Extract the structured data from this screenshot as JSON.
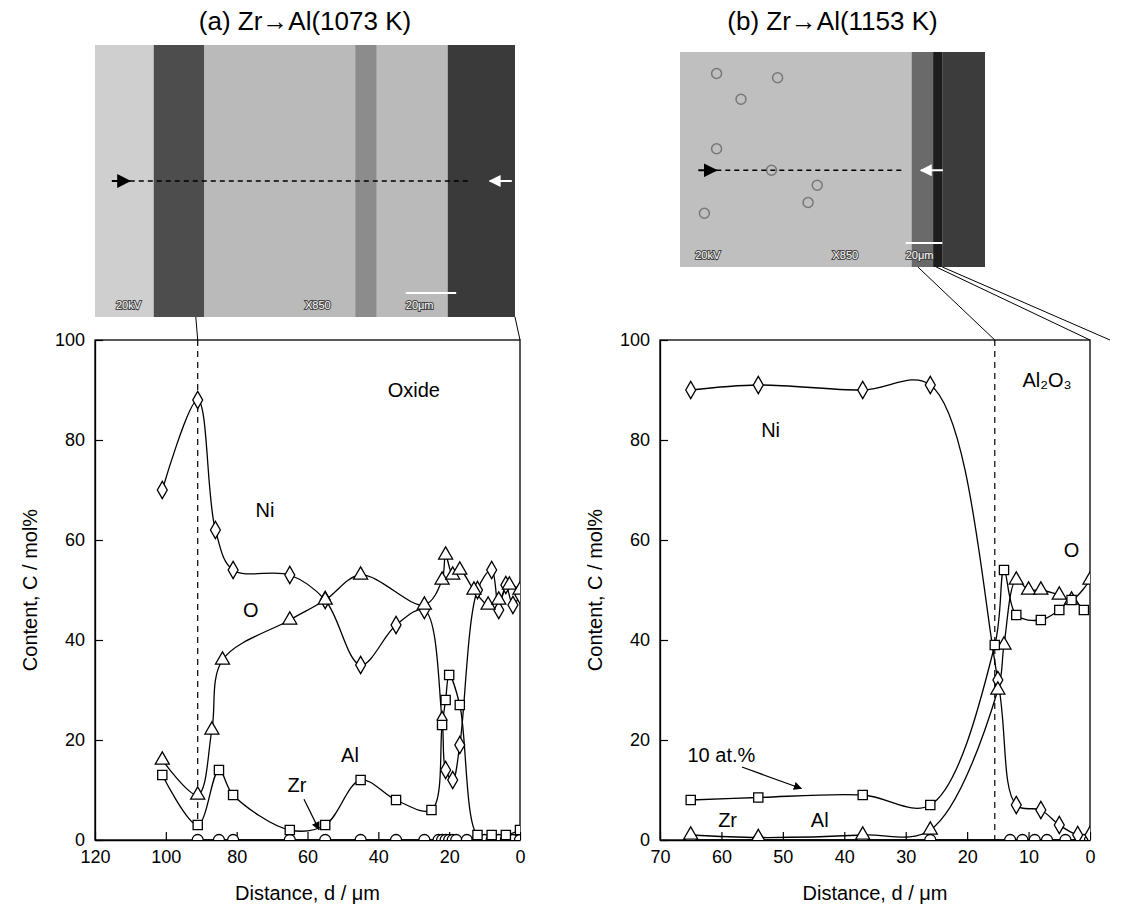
{
  "chart_data": [
    {
      "type": "line",
      "title": "(a) Zr→Al(1073 K)",
      "x_label": "Distance, d / μm",
      "y_label": "Content, C / mol%",
      "xlim": [
        120,
        0
      ],
      "xticks": [
        120,
        100,
        80,
        60,
        40,
        20,
        0
      ],
      "ylim": [
        0,
        100
      ],
      "yticks": [
        0,
        20,
        40,
        60,
        80,
        100
      ],
      "color": "#000000",
      "micrograph_labels": [
        "20kV",
        "X850",
        "20μm"
      ],
      "reference_lines": [
        {
          "x": 91,
          "line_style": "dashed"
        }
      ],
      "annotations": [
        {
          "text": "Oxide",
          "x": 30,
          "y": 90
        }
      ],
      "series": [
        {
          "name": "Zr",
          "marker": "circle",
          "line_style": "solid",
          "label_position": [
            63,
            11
          ],
          "label_arrow_to": [
            56,
            1
          ],
          "x": [
            91,
            85,
            81,
            65,
            55,
            45,
            35,
            27,
            23,
            22,
            21,
            20,
            19,
            18,
            15,
            12,
            10,
            8,
            6,
            4,
            2,
            0
          ],
          "values": [
            0,
            0,
            0,
            0,
            0,
            0,
            0,
            0,
            0,
            0,
            0,
            0,
            0,
            0,
            0,
            0,
            0,
            0,
            0,
            0,
            0,
            0
          ]
        },
        {
          "name": "Ni",
          "marker": "diamond",
          "line_style": "solid",
          "label_position": [
            72,
            66
          ],
          "x": [
            101,
            91,
            86,
            81,
            65,
            55,
            45,
            35,
            27,
            22,
            21,
            19,
            17,
            12,
            8,
            6,
            4,
            2,
            0
          ],
          "values": [
            70,
            88,
            62,
            54,
            53,
            48,
            35,
            43,
            46,
            24,
            14,
            12,
            19,
            50,
            54,
            46,
            51,
            47,
            49
          ]
        },
        {
          "name": "O",
          "marker": "triangle",
          "line_style": "solid",
          "label_position": [
            76,
            46
          ],
          "x": [
            101,
            91,
            87,
            84,
            65,
            55,
            45,
            27,
            22,
            21,
            19,
            17,
            13,
            9,
            6,
            3,
            0
          ],
          "values": [
            16,
            9,
            22,
            36,
            44,
            48,
            53,
            47,
            52,
            57,
            53,
            54,
            50,
            47,
            48,
            51,
            50
          ]
        },
        {
          "name": "Al",
          "marker": "square",
          "line_style": "solid",
          "label_position": [
            48,
            17
          ],
          "x": [
            101,
            91,
            85,
            81,
            65,
            55,
            45,
            35,
            25,
            22,
            21,
            20,
            17,
            12,
            8,
            4,
            0
          ],
          "values": [
            13,
            3,
            14,
            9,
            2,
            3,
            12,
            8,
            6,
            23,
            28,
            33,
            27,
            1,
            1,
            1,
            2
          ]
        }
      ]
    },
    {
      "type": "line",
      "title": "(b) Zr→Al(1153 K)",
      "x_label": "Distance, d / μm",
      "y_label": "Content, C / mol%",
      "xlim": [
        70,
        0
      ],
      "xticks": [
        70,
        60,
        50,
        40,
        30,
        20,
        10,
        0
      ],
      "ylim": [
        0,
        100
      ],
      "yticks": [
        0,
        20,
        40,
        60,
        80,
        100
      ],
      "color": "#000000",
      "micrograph_labels": [
        "20kV",
        "X850",
        "20μm"
      ],
      "reference_lines": [
        {
          "x": 15.5,
          "line_style": "dashed"
        }
      ],
      "annotations": [
        {
          "text": "Al₂O₃",
          "x": 7,
          "y": 92
        },
        {
          "text": "10 at.%",
          "x": 60,
          "y": 17,
          "arrow_to": [
            47,
            9.5
          ]
        }
      ],
      "series": [
        {
          "name": "Zr",
          "marker": "circle",
          "line_style": "solid",
          "label_position": [
            59,
            4
          ],
          "x": [
            65,
            54,
            37,
            26,
            13,
            11,
            9,
            7,
            4,
            1,
            0
          ],
          "values": [
            0,
            0,
            0,
            0,
            0,
            0,
            0,
            0,
            0,
            0,
            0
          ]
        },
        {
          "name": "Ni",
          "marker": "diamond",
          "line_style": "solid",
          "label_position": [
            52,
            82
          ],
          "x": [
            65,
            54,
            37,
            26,
            15,
            12,
            8,
            5,
            2,
            0
          ],
          "values": [
            90,
            91,
            90,
            91,
            32,
            7,
            6,
            3,
            1,
            1
          ]
        },
        {
          "name": "O",
          "marker": "triangle",
          "line_style": "solid",
          "label_position": [
            3,
            58
          ],
          "x": [
            65,
            54,
            37,
            26,
            15,
            14,
            12,
            10,
            8,
            5,
            3,
            0
          ],
          "values": [
            1,
            0.5,
            1,
            2,
            30,
            39,
            52,
            50,
            50,
            49,
            48,
            52
          ]
        },
        {
          "name": "Al",
          "marker": "square",
          "line_style": "solid",
          "label_position": [
            44,
            4
          ],
          "x": [
            65,
            54,
            37,
            26,
            15.5,
            14,
            12,
            8,
            5,
            3,
            1
          ],
          "values": [
            8,
            8.5,
            9,
            7,
            39,
            54,
            45,
            44,
            46,
            48,
            46
          ]
        }
      ]
    }
  ]
}
